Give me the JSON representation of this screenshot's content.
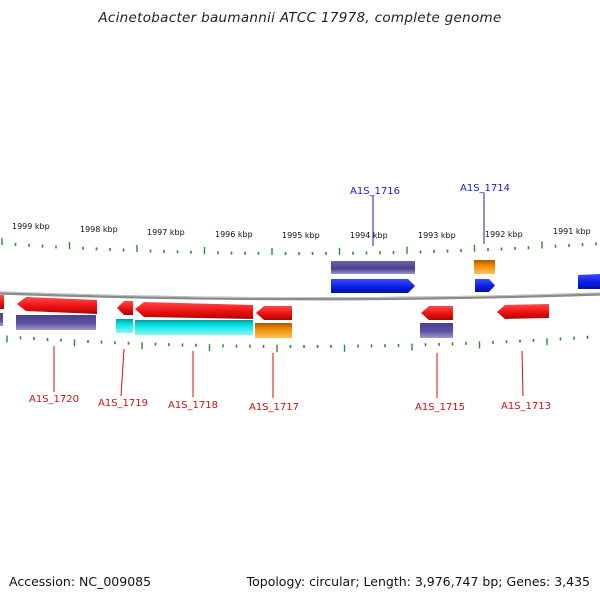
{
  "title": "Acinetobacter baumannii ATCC 17978, complete genome",
  "footer": {
    "accession": "Accession: NC_009085",
    "topology": "Topology: circular;",
    "length": "Length: 3,976,747 bp;",
    "genes": "Genes: 3,435"
  },
  "colors": {
    "forward_cds": "#0a1ee8",
    "forward_gene": "#4a4290",
    "reverse_cds": "#ee1010",
    "reverse_gene": "#5a52a0",
    "cyan_feature": "#00e4e4",
    "orange_feature": "#f08c00",
    "tick": "#2e8b2e",
    "backbone": "#8a8a8a",
    "label_forward": "#1a1acc",
    "label_reverse": "#cc1111"
  },
  "scale_labels": [
    "1999 kbp",
    "1998 kbp",
    "1997 kbp",
    "1996 kbp",
    "1995 kbp",
    "1994 kbp",
    "1993 kbp",
    "1992 kbp",
    "1991 kbp"
  ],
  "forward_labels": [
    "A1S_1716",
    "A1S_1714"
  ],
  "reverse_labels": [
    "A1S_1720",
    "A1S_1719",
    "A1S_1718",
    "A1S_1717",
    "A1S_1715",
    "A1S_1713"
  ]
}
